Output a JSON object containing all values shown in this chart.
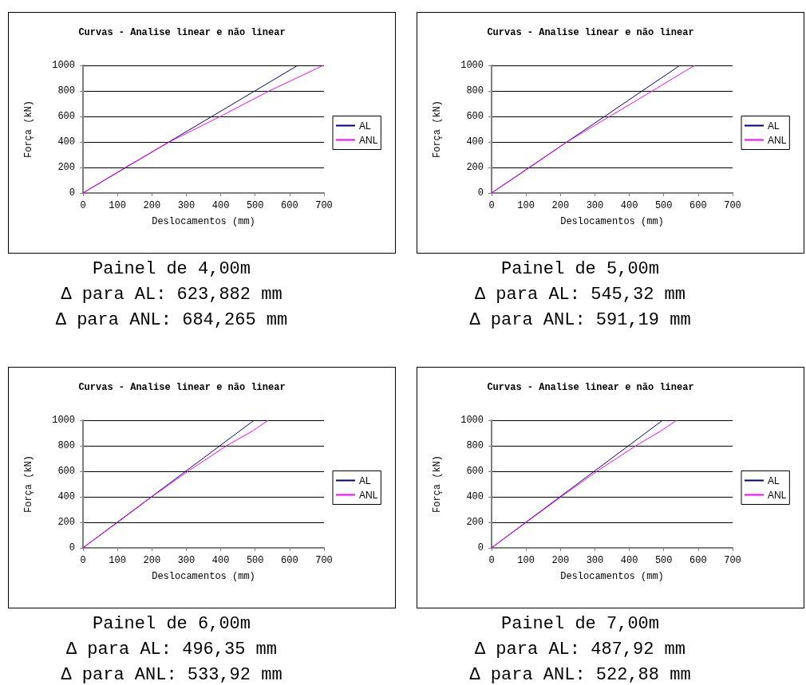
{
  "chart_data": [
    {
      "type": "line",
      "title": "Curvas - Analise linear e não linear",
      "xlabel": "Deslocamentos (mm)",
      "ylabel": "Força (kN)",
      "xlim": [
        0,
        700
      ],
      "xticks": [
        0,
        100,
        200,
        300,
        400,
        500,
        600,
        700
      ],
      "ylim": [
        0,
        1000
      ],
      "yticks": [
        0,
        200,
        400,
        600,
        800,
        1000
      ],
      "grid": "y",
      "legend": "right",
      "marker": "none",
      "line_style": "solid",
      "series": [
        {
          "name": "AL",
          "color": "#000080",
          "x": [
            0,
            624
          ],
          "values": [
            0,
            1000
          ]
        },
        {
          "name": "ANL",
          "color": "#ff00ff",
          "x": [
            0,
            123,
            251,
            399,
            541,
            667,
            698
          ],
          "values": [
            0,
            200,
            400,
            600,
            800,
            960,
            1000
          ]
        }
      ],
      "annotations": [
        "Painel de 4,00m",
        "Δ para AL: 623,882 mm",
        "Δ para ANL: 684,265 mm"
      ]
    },
    {
      "type": "line",
      "title": "Curvas - Analise linear e não linear",
      "xlabel": "Deslocamentos (mm)",
      "ylabel": "Força (kN)",
      "xlim": [
        0,
        700
      ],
      "xticks": [
        0,
        100,
        200,
        300,
        400,
        500,
        600,
        700
      ],
      "ylim": [
        0,
        1000
      ],
      "yticks": [
        0,
        200,
        400,
        600,
        800,
        1000
      ],
      "grid": "y",
      "legend": "right",
      "marker": "none",
      "line_style": "solid",
      "series": [
        {
          "name": "AL",
          "color": "#000080",
          "x": [
            0,
            547
          ],
          "values": [
            0,
            1000
          ]
        },
        {
          "name": "ANL",
          "color": "#ff00ff",
          "x": [
            0,
            111,
            219,
            343,
            467,
            565,
            591
          ],
          "values": [
            0,
            200,
            400,
            600,
            800,
            960,
            1000
          ]
        }
      ],
      "annotations": [
        "Painel de 5,00m",
        "Δ para AL: 545,32 mm",
        "Δ para ANL: 591,19 mm"
      ]
    },
    {
      "type": "line",
      "title": "Curvas - Analise linear e não linear",
      "xlabel": "Deslocamentos (mm)",
      "ylabel": "Força (kN)",
      "xlim": [
        0,
        700
      ],
      "xticks": [
        0,
        100,
        200,
        300,
        400,
        500,
        600,
        700
      ],
      "ylim": [
        0,
        1000
      ],
      "yticks": [
        0,
        200,
        400,
        600,
        800,
        1000
      ],
      "grid": "y",
      "legend": "right",
      "marker": "none",
      "line_style": "solid",
      "series": [
        {
          "name": "AL",
          "color": "#000080",
          "x": [
            0,
            497
          ],
          "values": [
            0,
            1000
          ]
        },
        {
          "name": "ANL",
          "color": "#ff00ff",
          "x": [
            0,
            101,
            200,
            305,
            417,
            495,
            538
          ],
          "values": [
            0,
            200,
            400,
            600,
            800,
            920,
            1000
          ]
        }
      ],
      "annotations": [
        "Painel de 6,00m",
        "Δ para AL: 496,35 mm",
        "Δ para ANL: 533,92 mm"
      ]
    },
    {
      "type": "line",
      "title": "Curvas - Analise linear e não linear",
      "xlabel": "Deslocamentos (mm)",
      "ylabel": "Força (kN)",
      "xlim": [
        0,
        700
      ],
      "xticks": [
        0,
        100,
        200,
        300,
        400,
        500,
        600,
        700
      ],
      "ylim": [
        0,
        1000
      ],
      "yticks": [
        0,
        200,
        400,
        600,
        800,
        1000
      ],
      "grid": "y",
      "legend": "right",
      "marker": "none",
      "line_style": "solid",
      "series": [
        {
          "name": "AL",
          "color": "#000080",
          "x": [
            0,
            497
          ],
          "values": [
            0,
            1000
          ]
        },
        {
          "name": "ANL",
          "color": "#ff00ff",
          "x": [
            0,
            101,
            202,
            306,
            419,
            494,
            538
          ],
          "values": [
            0,
            200,
            400,
            600,
            800,
            920,
            1000
          ]
        }
      ],
      "annotations": [
        "Painel de 7,00m",
        "Δ para AL: 487,92 mm",
        "Δ para ANL: 522,88 mm"
      ]
    }
  ]
}
